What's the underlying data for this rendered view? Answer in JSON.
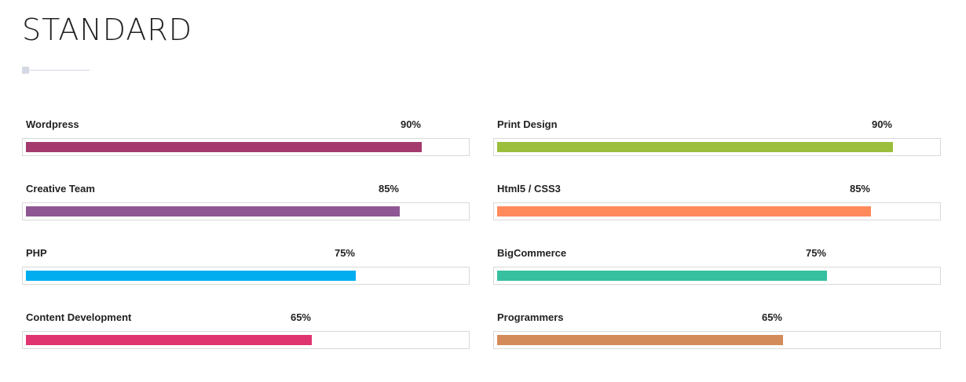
{
  "page": {
    "title": "STANDARD"
  },
  "skills_left": [
    {
      "label": "Wordpress",
      "percent_text": "90%",
      "value": 90,
      "color": "#a53a6e"
    },
    {
      "label": "Creative Team",
      "percent_text": "85%",
      "value": 85,
      "color": "#8e5793"
    },
    {
      "label": "PHP",
      "percent_text": "75%",
      "value": 75,
      "color": "#00aeef"
    },
    {
      "label": "Content Development",
      "percent_text": "65%",
      "value": 65,
      "color": "#e03470"
    }
  ],
  "skills_right": [
    {
      "label": "Print Design",
      "percent_text": "90%",
      "value": 90,
      "color": "#9bbe3d"
    },
    {
      "label": "Html5 / CSS3",
      "percent_text": "85%",
      "value": 85,
      "color": "#ff8a5b"
    },
    {
      "label": "BigCommerce",
      "percent_text": "75%",
      "value": 75,
      "color": "#36c09f"
    },
    {
      "label": "Programmers",
      "percent_text": "65%",
      "value": 65,
      "color": "#d38b5a"
    }
  ]
}
